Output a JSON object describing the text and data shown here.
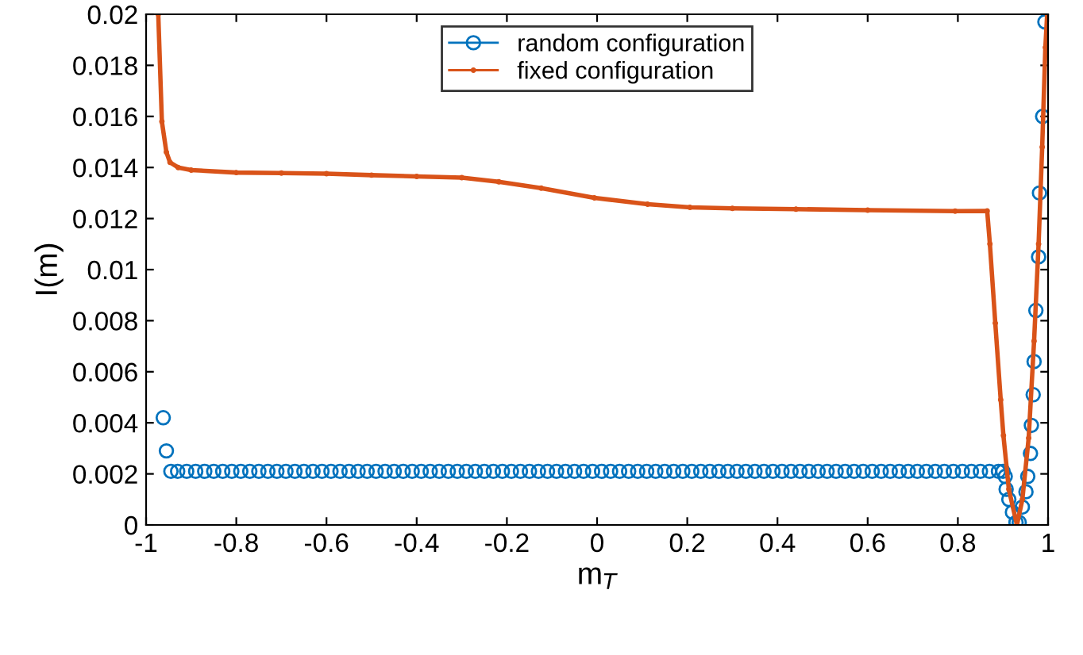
{
  "chart_data": {
    "type": "line",
    "xlabel": "m$_{T}$",
    "ylabel": "I(m)",
    "xlim": [
      -1,
      1
    ],
    "ylim": [
      0,
      0.02
    ],
    "xticks": [
      -1,
      -0.8,
      -0.6,
      -0.4,
      -0.2,
      0,
      0.2,
      0.4,
      0.6,
      0.8,
      1
    ],
    "yticks": [
      0,
      0.002,
      0.004,
      0.006,
      0.008,
      0.01,
      0.012,
      0.014,
      0.016,
      0.018,
      0.02
    ],
    "grid": false,
    "legend": "top",
    "line_style": "solid",
    "series": [
      {
        "name": "random configuration",
        "type": "scatter",
        "marker": "circle",
        "color": "#0072bd",
        "x": [
          -0.962,
          -0.955,
          -0.945,
          -0.93,
          -0.91,
          -0.89,
          -0.87,
          -0.85,
          -0.83,
          -0.81,
          -0.79,
          -0.77,
          -0.75,
          -0.73,
          -0.71,
          -0.69,
          -0.67,
          -0.65,
          -0.63,
          -0.61,
          -0.59,
          -0.57,
          -0.55,
          -0.53,
          -0.51,
          -0.49,
          -0.47,
          -0.45,
          -0.43,
          -0.41,
          -0.39,
          -0.37,
          -0.35,
          -0.33,
          -0.31,
          -0.29,
          -0.27,
          -0.25,
          -0.23,
          -0.21,
          -0.19,
          -0.17,
          -0.15,
          -0.13,
          -0.11,
          -0.09,
          -0.07,
          -0.05,
          -0.03,
          -0.01,
          0.01,
          0.03,
          0.05,
          0.07,
          0.09,
          0.11,
          0.13,
          0.15,
          0.17,
          0.19,
          0.21,
          0.23,
          0.25,
          0.27,
          0.29,
          0.31,
          0.33,
          0.35,
          0.37,
          0.39,
          0.41,
          0.43,
          0.45,
          0.47,
          0.49,
          0.51,
          0.53,
          0.55,
          0.57,
          0.59,
          0.61,
          0.63,
          0.65,
          0.67,
          0.69,
          0.71,
          0.73,
          0.75,
          0.77,
          0.79,
          0.81,
          0.83,
          0.85,
          0.87,
          0.89,
          0.9,
          0.905,
          0.907,
          0.913,
          0.921,
          0.929,
          0.936,
          0.943,
          0.951,
          0.955,
          0.961,
          0.963,
          0.967,
          0.969,
          0.973,
          0.979,
          0.981,
          0.988,
          0.993
        ],
        "values": [
          0.0042,
          0.0029,
          0.0021,
          0.0021,
          0.0021,
          0.0021,
          0.0021,
          0.0021,
          0.0021,
          0.0021,
          0.0021,
          0.0021,
          0.0021,
          0.0021,
          0.0021,
          0.0021,
          0.0021,
          0.0021,
          0.0021,
          0.0021,
          0.0021,
          0.0021,
          0.0021,
          0.0021,
          0.0021,
          0.0021,
          0.0021,
          0.0021,
          0.0021,
          0.0021,
          0.0021,
          0.0021,
          0.0021,
          0.0021,
          0.0021,
          0.0021,
          0.0021,
          0.0021,
          0.0021,
          0.0021,
          0.0021,
          0.0021,
          0.0021,
          0.0021,
          0.0021,
          0.0021,
          0.0021,
          0.0021,
          0.0021,
          0.0021,
          0.0021,
          0.0021,
          0.0021,
          0.0021,
          0.0021,
          0.0021,
          0.0021,
          0.0021,
          0.0021,
          0.0021,
          0.0021,
          0.0021,
          0.0021,
          0.0021,
          0.0021,
          0.0021,
          0.0021,
          0.0021,
          0.0021,
          0.0021,
          0.0021,
          0.0021,
          0.0021,
          0.0021,
          0.0021,
          0.0021,
          0.0021,
          0.0021,
          0.0021,
          0.0021,
          0.0021,
          0.0021,
          0.0021,
          0.0021,
          0.0021,
          0.0021,
          0.0021,
          0.0021,
          0.0021,
          0.0021,
          0.0021,
          0.0021,
          0.0021,
          0.0021,
          0.0021,
          0.0021,
          0.0019,
          0.0014,
          0.001,
          0.0005,
          0.0001,
          0.0001,
          0.0007,
          0.0013,
          0.0019,
          0.0028,
          0.0039,
          0.0051,
          0.0064,
          0.0084,
          0.0105,
          0.013,
          0.016,
          0.0197
        ]
      },
      {
        "name": "fixed configuration",
        "marker": "point",
        "color": "#d95319",
        "x": [
          -0.973,
          -0.965,
          -0.955,
          -0.947,
          -0.929,
          -0.9,
          -0.8,
          -0.7,
          -0.6,
          -0.5,
          -0.4,
          -0.3,
          -0.218,
          -0.124,
          -0.006,
          0.112,
          0.206,
          0.3,
          0.441,
          0.6,
          0.794,
          0.865,
          0.871,
          0.883,
          0.895,
          0.901,
          0.913,
          0.931,
          0.943,
          0.957,
          0.969,
          0.979,
          0.987,
          0.994,
          0.998
        ],
        "values": [
          0.02,
          0.0158,
          0.0146,
          0.0142,
          0.014,
          0.0139,
          0.0138,
          0.01378,
          0.01376,
          0.0137,
          0.01365,
          0.0136,
          0.01344,
          0.01319,
          0.01281,
          0.01256,
          0.01244,
          0.0124,
          0.01237,
          0.01233,
          0.01229,
          0.0123,
          0.011,
          0.0079,
          0.0049,
          0.0035,
          0.0014,
          0.0,
          0.001,
          0.0034,
          0.0072,
          0.011,
          0.0148,
          0.0187,
          0.02
        ]
      }
    ]
  }
}
